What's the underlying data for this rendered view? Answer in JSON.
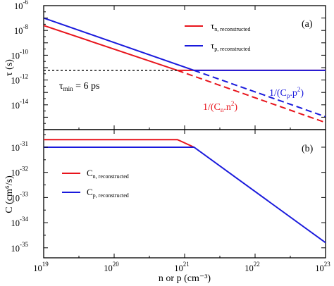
{
  "chart_data": [
    {
      "type": "line",
      "panel": "(a)",
      "panel_label": "(a)",
      "ylabel": "τ (s)",
      "x_scale": "log",
      "y_scale": "log",
      "xlim": [
        1e+19,
        1e+23
      ],
      "ylim": [
        1e-16,
        1e-06
      ],
      "x_ticks": [
        1e+19,
        1e+20,
        1e+21,
        1e+22,
        1e+23
      ],
      "y_ticks": [
        1e-06,
        1e-08,
        1e-10,
        1e-12,
        1e-14
      ],
      "y_tick_exps": [
        "-6",
        "-8",
        "-10",
        "-12",
        "-14"
      ],
      "legend_position": "top-right",
      "series": [
        {
          "name": "τn, reconstructed",
          "legend_main": "τ",
          "legend_sub": "n, reconstructed",
          "color": "#e8141c",
          "segments": [
            {
              "style": "solid",
              "x": [
                1e+19,
                7.9e+20,
                1e+23
              ],
              "y": [
                2.5e-08,
                6e-12,
                6e-12
              ]
            },
            {
              "style": "dashed",
              "x": [
                7.9e+20,
                1e+23
              ],
              "y": [
                6e-12,
                3.7e-16
              ]
            }
          ]
        },
        {
          "name": "τp, reconstructed",
          "legend_main": "τ",
          "legend_sub": "p, reconstructed",
          "color": "#1a1adc",
          "segments": [
            {
              "style": "solid",
              "x": [
                1e+19,
                1.36e+21,
                1e+23
              ],
              "y": [
                1e-07,
                6e-12,
                6e-12
              ]
            },
            {
              "style": "dashed",
              "x": [
                1.36e+21,
                1e+23
              ],
              "y": [
                6e-12,
                1.1e-15
              ]
            }
          ]
        },
        {
          "name": "τmin",
          "color": "#000000",
          "segments": [
            {
              "style": "dotted",
              "x": [
                1e+19,
                7.9e+20
              ],
              "y": [
                6e-12,
                6e-12
              ]
            }
          ]
        }
      ],
      "annotations": [
        {
          "id": "tau-min",
          "main": "τ",
          "sub": "min",
          "rest": " = 6 ps",
          "color": "#000000"
        },
        {
          "id": "cp-p2",
          "text": "1/(C",
          "sub": "p",
          "rest": ".p",
          "sup": "2",
          "close": ")",
          "color": "#1a1adc"
        },
        {
          "id": "cn-n2",
          "text": "1/(C",
          "sub": "n",
          "rest": ".n",
          "sup": "2",
          "close": ")",
          "color": "#e8141c"
        }
      ]
    },
    {
      "type": "line",
      "panel": "(b)",
      "panel_label": "(b)",
      "ylabel": "C (cm⁶/s)",
      "xlabel": "n or p (cm⁻³)",
      "x_scale": "log",
      "y_scale": "log",
      "xlim": [
        1e+19,
        1e+23
      ],
      "ylim": [
        4e-36,
        5e-31
      ],
      "x_ticks": [
        1e+19,
        1e+20,
        1e+21,
        1e+22,
        1e+23
      ],
      "x_tick_exps": [
        "19",
        "20",
        "21",
        "22",
        "23"
      ],
      "y_ticks": [
        1e-31,
        1e-32,
        1e-33,
        1e-34,
        1e-35
      ],
      "y_tick_exps": [
        "-31",
        "-32",
        "-33",
        "-34",
        "-35"
      ],
      "legend_position": "middle-left",
      "series": [
        {
          "name": "Cn, reconstructed",
          "legend_main": "C",
          "legend_sub": "n, reconstructed",
          "color": "#e8141c",
          "x": [
            1e+19,
            7.9e+20,
            1.36e+21
          ],
          "y": [
            2e-31,
            2e-31,
            1e-31
          ]
        },
        {
          "name": "Cp, reconstructed",
          "legend_main": "C",
          "legend_sub": "p, reconstructed",
          "color": "#1a1adc",
          "x": [
            1e+19,
            1.36e+21,
            1e+23
          ],
          "y": [
            1e-31,
            1e-31,
            1.6e-35
          ]
        }
      ]
    }
  ]
}
